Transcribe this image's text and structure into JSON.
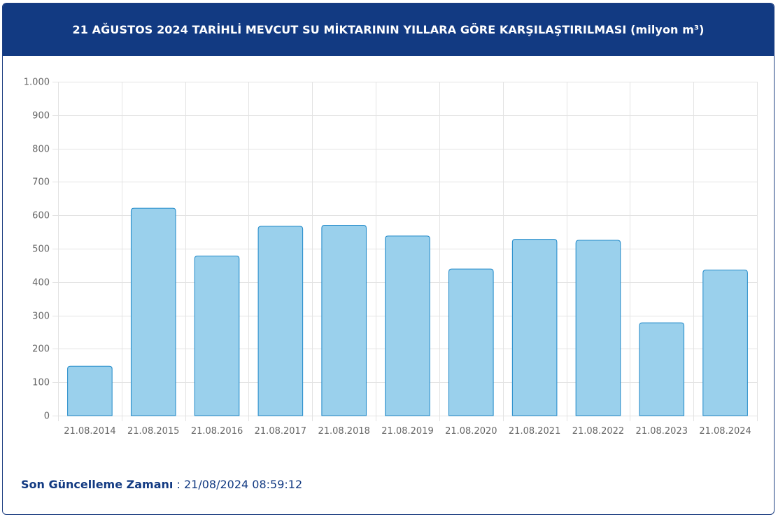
{
  "header": {
    "title": "21 AĞUSTOS 2024 TARİHLİ MEVCUT SU MİKTARININ YILLARA GÖRE KARŞILAŞTIRILMASI (milyon m³)"
  },
  "footer": {
    "label": "Son Güncelleme Zamanı",
    "separator": " : ",
    "timestamp": "21/08/2024 08:59:12"
  },
  "colors": {
    "header_bg": "#123a82",
    "bar_fill": "#9ad0ec",
    "bar_stroke": "#1e88c8",
    "grid": "#e3e3e3",
    "axis_text": "#666666",
    "footer_text": "#123a82"
  },
  "chart_data": {
    "type": "bar",
    "title": "21 AĞUSTOS 2024 TARİHLİ MEVCUT SU MİKTARININ YILLARA GÖRE KARŞILAŞTIRILMASI (milyon m³)",
    "categories": [
      "21.08.2014",
      "21.08.2015",
      "21.08.2016",
      "21.08.2017",
      "21.08.2018",
      "21.08.2019",
      "21.08.2020",
      "21.08.2021",
      "21.08.2022",
      "21.08.2023",
      "21.08.2024"
    ],
    "values": [
      148,
      621,
      478,
      567,
      570,
      538,
      439,
      528,
      525,
      278,
      436
    ],
    "ylim": [
      0,
      1000
    ],
    "yticks": [
      0,
      100,
      200,
      300,
      400,
      500,
      600,
      700,
      800,
      900,
      1000
    ],
    "ytick_labels": [
      "0",
      "100",
      "200",
      "300",
      "400",
      "500",
      "600",
      "700",
      "800",
      "900",
      "1.000"
    ],
    "xlabel": "",
    "ylabel": "",
    "grid": true,
    "legend": "none"
  }
}
